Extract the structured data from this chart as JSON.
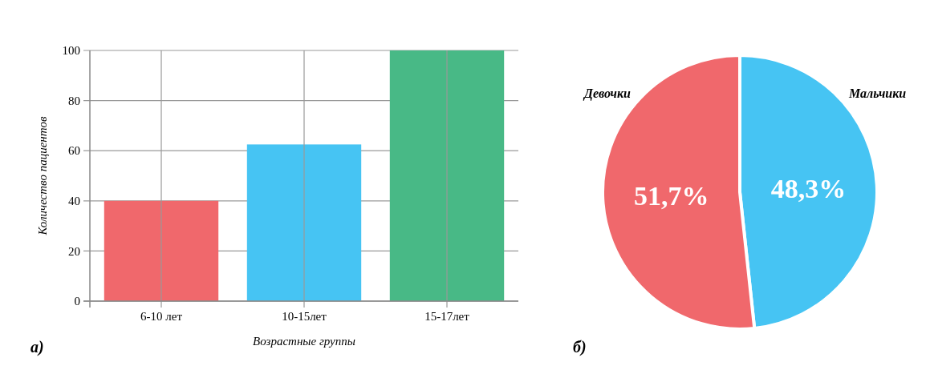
{
  "chart_data": [
    {
      "type": "bar",
      "xlabel": "Возрастные группы",
      "ylabel": "Количество пациентов",
      "categories": [
        "6-10 лет",
        "10-15лет",
        "15-17лет"
      ],
      "values": [
        40,
        62.5,
        100
      ],
      "colors": [
        "#f0686c",
        "#46c4f3",
        "#48b986"
      ],
      "ylim": [
        0,
        100
      ],
      "yticks": [
        0,
        20,
        40,
        60,
        80,
        100
      ],
      "grid": true,
      "annotations": [
        "а)"
      ]
    },
    {
      "type": "pie",
      "categories": [
        "Мальчики",
        "Девочки"
      ],
      "values": [
        48.3,
        51.7
      ],
      "colors": [
        "#46c4f3",
        "#f0686c"
      ],
      "value_labels": [
        "48,3%",
        "51,7%"
      ],
      "annotations": [
        "б)"
      ]
    }
  ]
}
